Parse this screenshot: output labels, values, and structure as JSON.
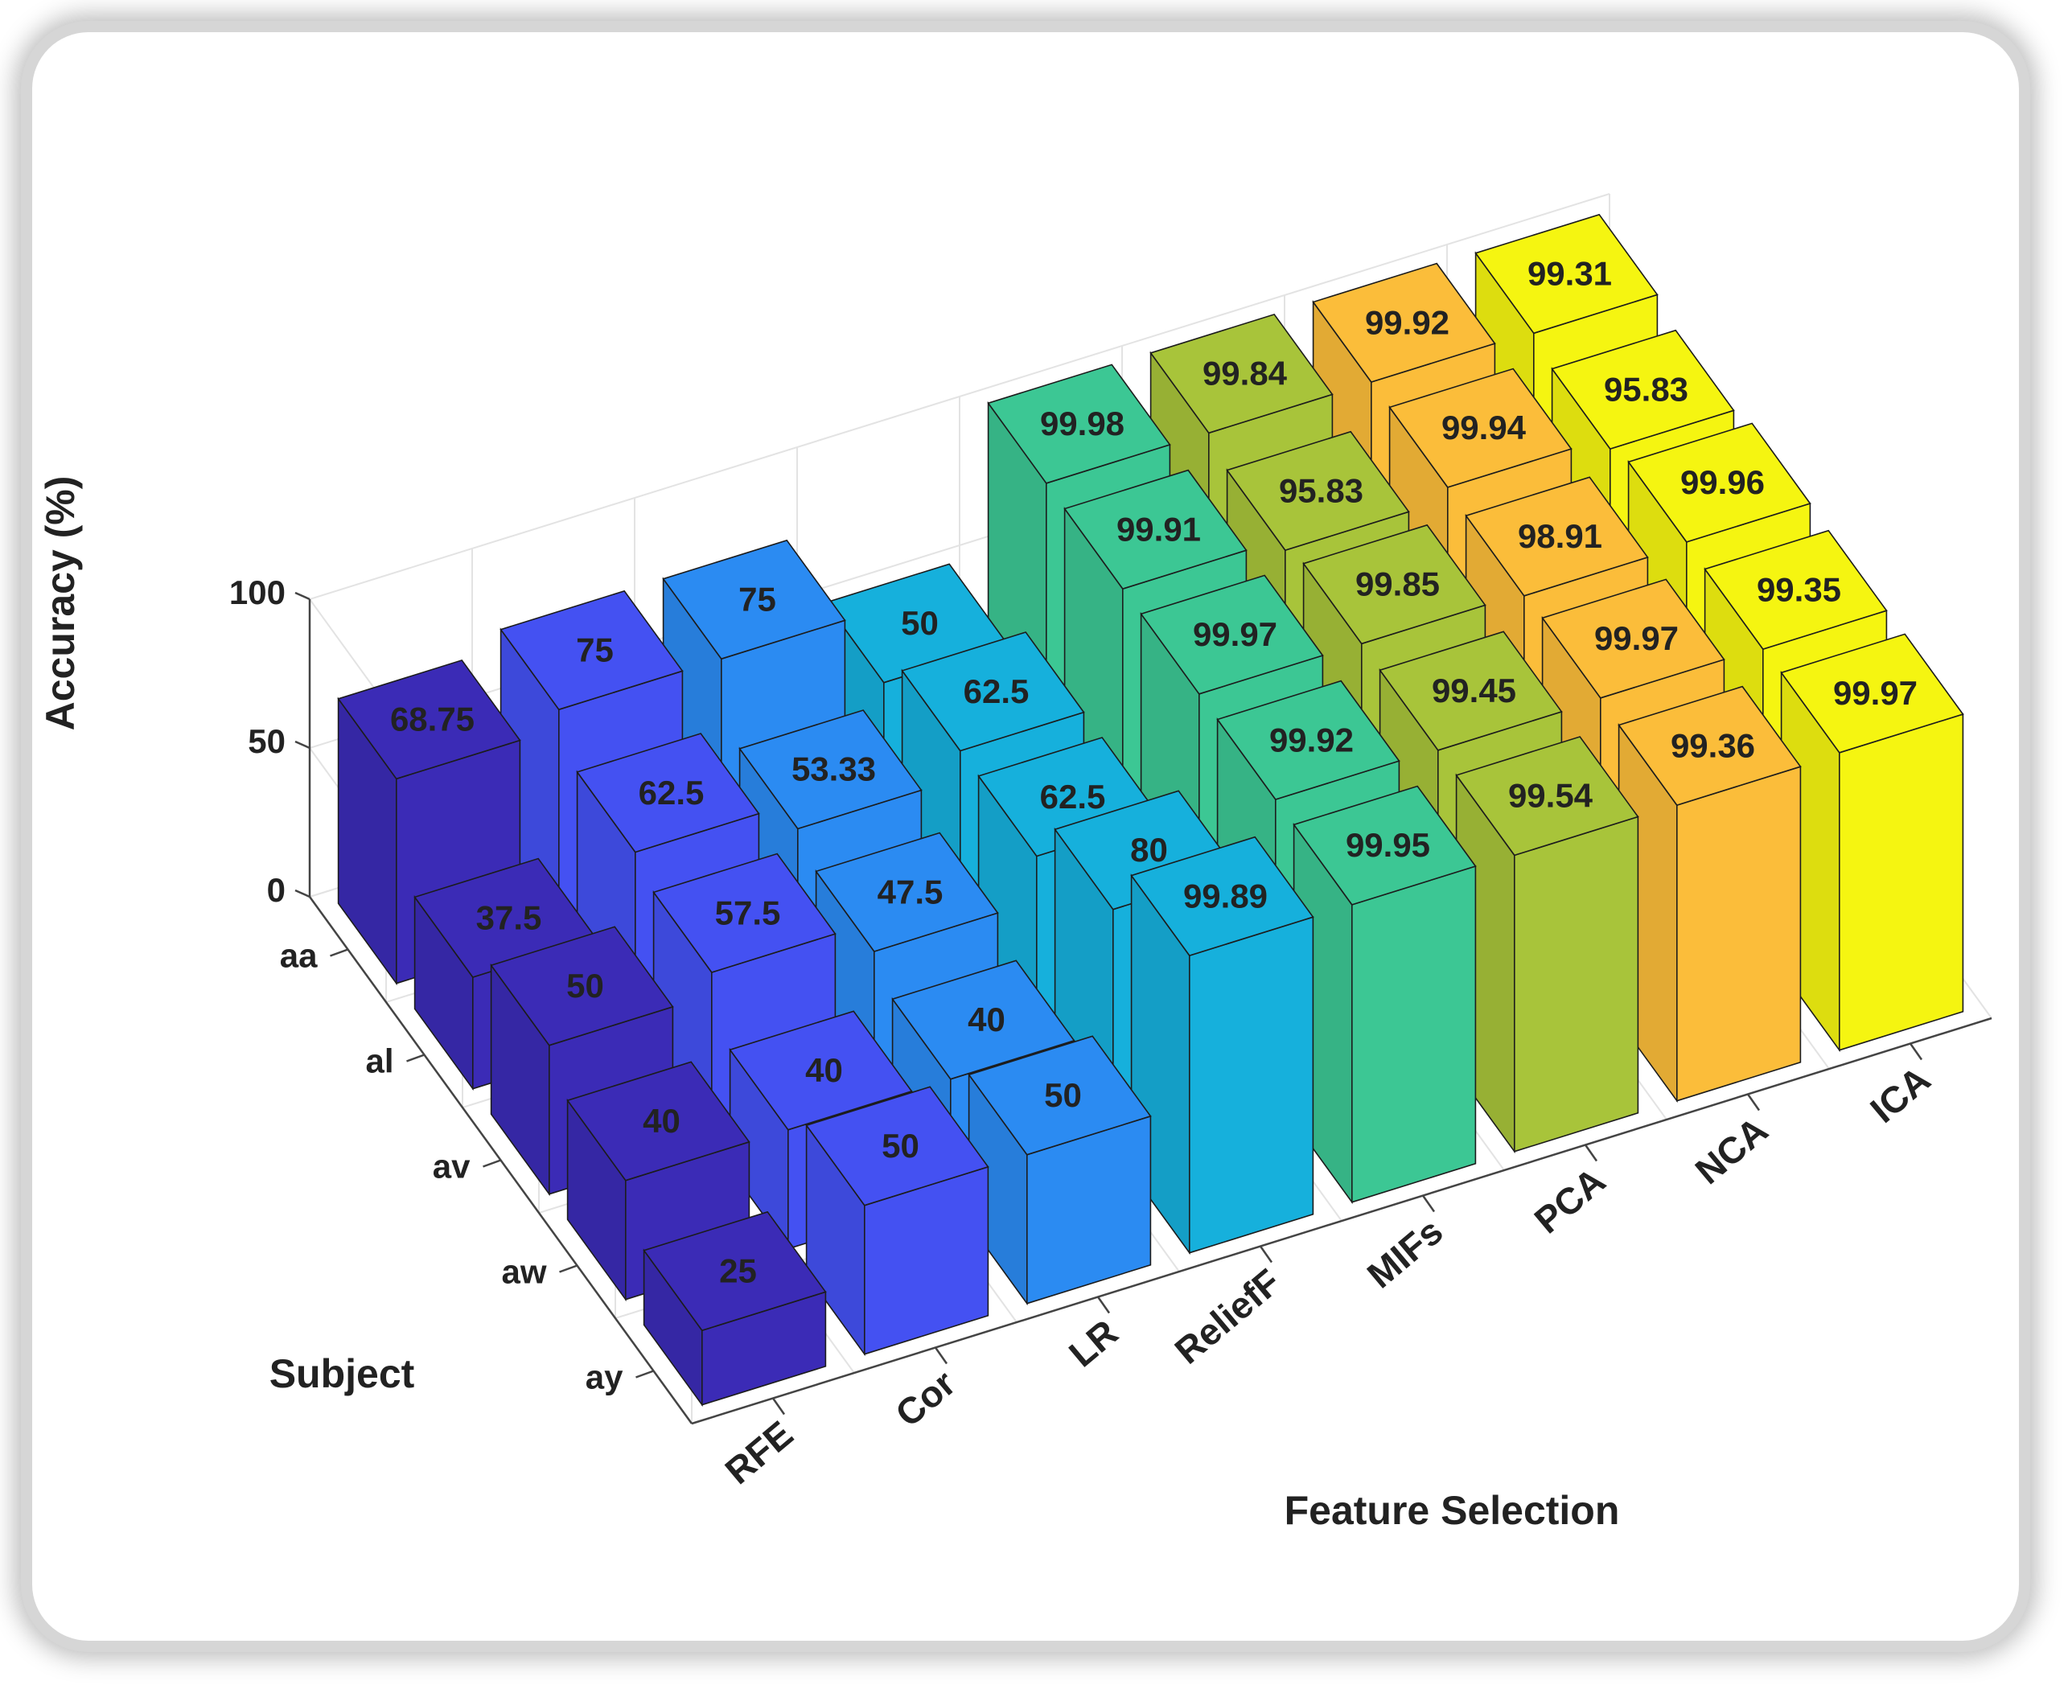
{
  "chart_data": {
    "type": "bar",
    "xlabel": "Feature Selection",
    "ylabel": "Subject",
    "zlabel": "Accuracy  (%)",
    "zlim": [
      0,
      100
    ],
    "zticks": [
      "0",
      "50",
      "100"
    ],
    "categories": [
      "RFE",
      "Cor",
      "LR",
      "ReliefF",
      "MIFs",
      "PCA",
      "NCA",
      "ICA"
    ],
    "subjects": [
      "aa",
      "al",
      "av",
      "aw",
      "ay"
    ],
    "colors": [
      "#3b2bb6",
      "#4451f2",
      "#2b8bf2",
      "#16b0dc",
      "#3cc794",
      "#a8c43a",
      "#fbbd3a",
      "#f5f511"
    ],
    "series": [
      {
        "name": "aa",
        "values": [
          68.75,
          75,
          75,
          50,
          99.98,
          99.84,
          99.92,
          99.31
        ]
      },
      {
        "name": "al",
        "values": [
          37.5,
          62.5,
          53.33,
          62.5,
          99.91,
          95.83,
          99.94,
          95.83
        ]
      },
      {
        "name": "av",
        "values": [
          50,
          57.5,
          47.5,
          62.5,
          99.97,
          99.85,
          98.91,
          99.96
        ]
      },
      {
        "name": "aw",
        "values": [
          40,
          40,
          40,
          80,
          99.92,
          99.45,
          99.97,
          99.35
        ]
      },
      {
        "name": "ay",
        "values": [
          25,
          50,
          50,
          99.89,
          99.95,
          99.54,
          99.36,
          99.97
        ]
      }
    ],
    "grid": true
  }
}
